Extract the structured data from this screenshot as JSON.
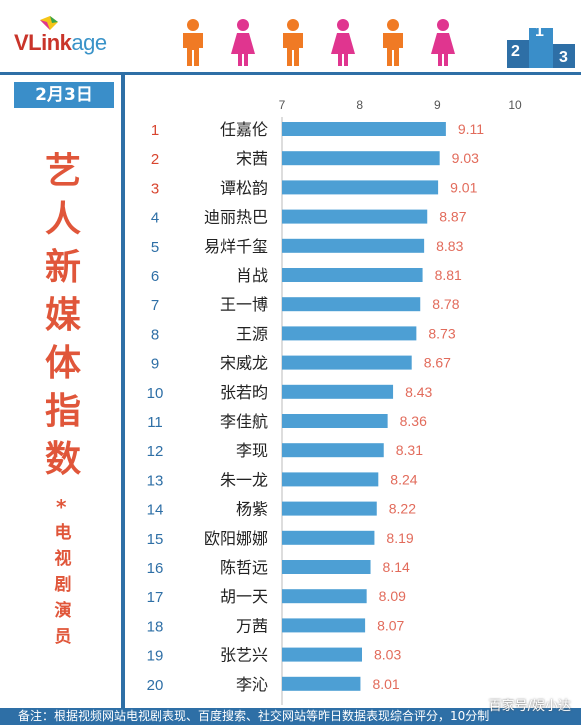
{
  "header": {
    "logo_part1": "VLink",
    "logo_part2": "age",
    "figure_colors": [
      "#f07a24",
      "#e0358f",
      "#f07a24",
      "#e0358f",
      "#f07a24",
      "#e0358f"
    ],
    "podium_icon": "podium-icon",
    "podium_labels": [
      "2",
      "1",
      "3"
    ]
  },
  "sidebar": {
    "date": "2月3日",
    "title_chars": [
      "艺",
      "人",
      "新",
      "媒",
      "体",
      "指",
      "数"
    ],
    "star": "*",
    "subtitle_chars": [
      "电",
      "视",
      "剧",
      "演",
      "员"
    ]
  },
  "footer": {
    "note": "备注：根据视频网站电视剧表现、百度搜索、社交网站等昨日数据表现综合评分，10分制",
    "watermark": "百家号/娱小达"
  },
  "colors": {
    "accent": "#2e6fa6",
    "bar": "#4d9fd4",
    "title": "#e0563a",
    "value_label": "#e26b5b"
  },
  "chart_data": {
    "type": "bar",
    "orientation": "horizontal",
    "xlim": [
      7,
      10
    ],
    "xticks": [
      "7",
      "8",
      "9",
      "10"
    ],
    "ranks": [
      "1",
      "2",
      "3",
      "4",
      "5",
      "6",
      "7",
      "8",
      "9",
      "10",
      "11",
      "12",
      "13",
      "14",
      "15",
      "16",
      "17",
      "18",
      "19",
      "20"
    ],
    "categories": [
      "任嘉伦",
      "宋茜",
      "谭松韵",
      "迪丽热巴",
      "易烊千玺",
      "肖战",
      "王一博",
      "王源",
      "宋威龙",
      "张若昀",
      "李佳航",
      "李现",
      "朱一龙",
      "杨紫",
      "欧阳娜娜",
      "陈哲远",
      "胡一天",
      "万茜",
      "张艺兴",
      "李沁"
    ],
    "values": [
      9.11,
      9.03,
      9.01,
      8.87,
      8.83,
      8.81,
      8.78,
      8.73,
      8.67,
      8.43,
      8.36,
      8.31,
      8.24,
      8.22,
      8.19,
      8.14,
      8.09,
      8.07,
      8.03,
      8.01
    ],
    "value_labels": [
      "9.11",
      "9.03",
      "9.01",
      "8.87",
      "8.83",
      "8.81",
      "8.78",
      "8.73",
      "8.67",
      "8.43",
      "8.36",
      "8.31",
      "8.24",
      "8.22",
      "8.19",
      "8.14",
      "8.09",
      "8.07",
      "8.03",
      "8.01"
    ],
    "grid": false
  }
}
